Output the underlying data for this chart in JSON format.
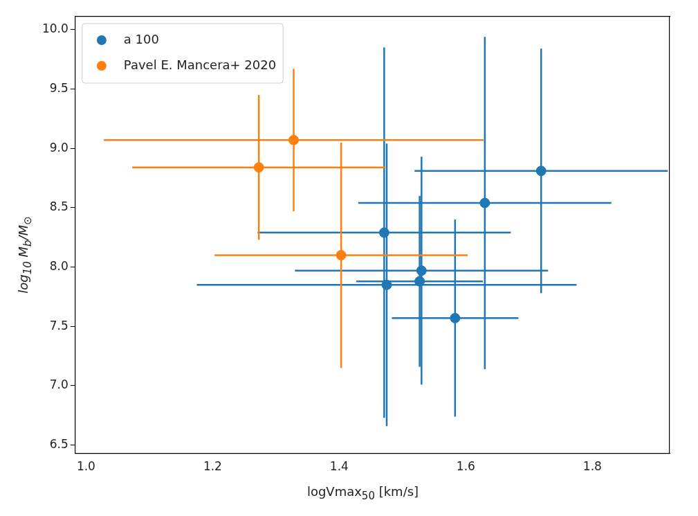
{
  "chart_data": {
    "type": "scatter",
    "xlabel": "logVmax$_{50}$ [km/s]",
    "ylabel": "log$_{10}$ M$_{b}$/M$_{⊙}$",
    "xlim": [
      0.983,
      1.922
    ],
    "ylim": [
      6.43,
      10.11
    ],
    "xticks": [
      {
        "value": 1,
        "label": "1.0"
      },
      1.2,
      1.4,
      1.6,
      1.8
    ],
    "yticks": [
      6.5,
      {
        "value": 7,
        "label": "7.0"
      },
      7.5,
      {
        "value": 8,
        "label": "8.0"
      },
      8.5,
      {
        "value": 9,
        "label": "9.0"
      },
      9.5,
      {
        "value": 10,
        "label": "10.0"
      }
    ],
    "legend": "top left",
    "marker": "circle",
    "grid": false,
    "series": [
      {
        "name": "a 100",
        "color": "#1f77b4",
        "x": [
          1.719,
          1.63,
          1.471,
          1.53,
          1.475,
          1.527,
          1.583
        ],
        "values": [
          8.81,
          8.54,
          8.29,
          7.97,
          7.85,
          7.88,
          7.57
        ],
        "errors": [
          1.03,
          1.4,
          1.56,
          0.96,
          1.19,
          0.72,
          0.83
        ],
        "xerrors": [
          0.2,
          0.2,
          0.2,
          0.2,
          0.3,
          0.1,
          0.1
        ]
      },
      {
        "name": "Pavel E. Mancera+ 2020",
        "color": "#ff7f0e",
        "x": [
          1.328,
          1.273,
          1.403
        ],
        "values": [
          9.07,
          8.84,
          8.1
        ],
        "errors": [
          0.6,
          0.61,
          0.95
        ],
        "xerrors": [
          0.3,
          0.2,
          0.2
        ]
      }
    ]
  }
}
